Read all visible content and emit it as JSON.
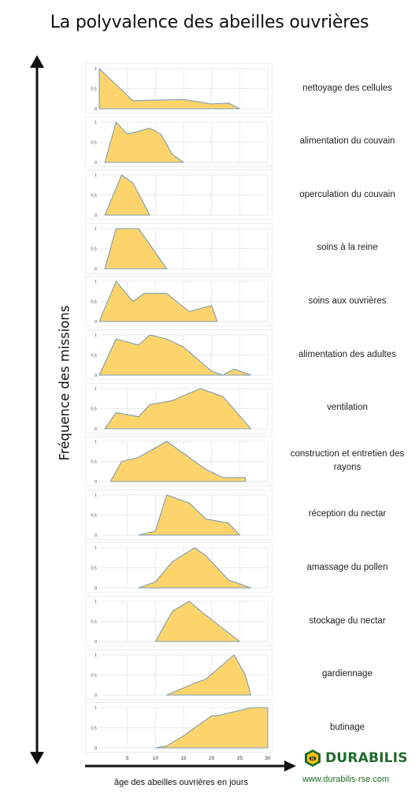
{
  "title": "La polyvalence des abeilles ouvrières",
  "y_axis_label": "Fréquence des missions",
  "x_axis_label": "âge des abeilles ouvrières en jours",
  "brand": {
    "name": "DURABILIS",
    "url": "www.durabilis-rse.com",
    "logo_icon": "bee-hexagon-icon"
  },
  "colors": {
    "fill": "#FDD46B",
    "stroke": "#7C9DB3",
    "grid": "#E3E3E3",
    "brand": "#1F6B2A"
  },
  "chart_data": {
    "type": "area",
    "x_ticks": [
      5,
      10,
      15,
      20,
      25,
      30
    ],
    "y_ticks": [
      0,
      0.5,
      1
    ],
    "xlim": [
      0,
      30
    ],
    "ylim": [
      0,
      1
    ],
    "grid": true,
    "panels": [
      {
        "label": "nettoyage des cellules",
        "points": [
          [
            0,
            1
          ],
          [
            6,
            0.2
          ],
          [
            15,
            0.23
          ],
          [
            20,
            0.12
          ],
          [
            23,
            0.14
          ],
          [
            25,
            0
          ]
        ]
      },
      {
        "label": "alimentation du couvain",
        "points": [
          [
            1,
            0
          ],
          [
            3,
            1
          ],
          [
            5,
            0.7
          ],
          [
            9,
            0.85
          ],
          [
            11,
            0.7
          ],
          [
            13,
            0.2
          ],
          [
            15,
            0
          ]
        ]
      },
      {
        "label": "operculation du couvain",
        "points": [
          [
            1,
            0
          ],
          [
            4,
            1
          ],
          [
            6,
            0.8
          ],
          [
            9,
            0
          ]
        ]
      },
      {
        "label": "soins à la reine",
        "points": [
          [
            1,
            0
          ],
          [
            3,
            1
          ],
          [
            7,
            1
          ],
          [
            12,
            0
          ]
        ]
      },
      {
        "label": "soins aux ouvrières",
        "points": [
          [
            0,
            0
          ],
          [
            3,
            1
          ],
          [
            6,
            0.5
          ],
          [
            8,
            0.7
          ],
          [
            12,
            0.7
          ],
          [
            16,
            0.25
          ],
          [
            20,
            0.4
          ],
          [
            21,
            0
          ]
        ]
      },
      {
        "label": "alimentation des adultes",
        "points": [
          [
            0,
            0
          ],
          [
            3,
            0.9
          ],
          [
            7,
            0.75
          ],
          [
            9,
            1
          ],
          [
            12,
            0.9
          ],
          [
            15,
            0.7
          ],
          [
            20,
            0.1
          ],
          [
            22,
            0
          ],
          [
            24,
            0.15
          ],
          [
            27,
            0
          ]
        ]
      },
      {
        "label": "ventilation",
        "points": [
          [
            1,
            0
          ],
          [
            3,
            0.4
          ],
          [
            7,
            0.3
          ],
          [
            9,
            0.6
          ],
          [
            13,
            0.7
          ],
          [
            18,
            1
          ],
          [
            22,
            0.8
          ],
          [
            27,
            0
          ]
        ]
      },
      {
        "label": "construction et entretien des rayons",
        "points": [
          [
            2,
            0
          ],
          [
            4,
            0.5
          ],
          [
            7,
            0.6
          ],
          [
            12,
            1
          ],
          [
            19,
            0.3
          ],
          [
            22,
            0.1
          ],
          [
            26,
            0.1
          ]
        ]
      },
      {
        "label": "réception du nectar",
        "points": [
          [
            7,
            0
          ],
          [
            10,
            0.1
          ],
          [
            12,
            1
          ],
          [
            16,
            0.8
          ],
          [
            19,
            0.4
          ],
          [
            23,
            0.3
          ],
          [
            25,
            0
          ]
        ]
      },
      {
        "label": "amassage du pollen",
        "points": [
          [
            7,
            0
          ],
          [
            10,
            0.15
          ],
          [
            13,
            0.65
          ],
          [
            17,
            1
          ],
          [
            19,
            0.8
          ],
          [
            23,
            0.2
          ],
          [
            27,
            0
          ]
        ]
      },
      {
        "label": "stockage du nectar",
        "points": [
          [
            10,
            0
          ],
          [
            13,
            0.75
          ],
          [
            16,
            1
          ],
          [
            19,
            0.65
          ],
          [
            25,
            0
          ]
        ]
      },
      {
        "label": "gardiennage",
        "points": [
          [
            12,
            0
          ],
          [
            17,
            0.3
          ],
          [
            19,
            0.4
          ],
          [
            24,
            1
          ],
          [
            26,
            0.5
          ],
          [
            27,
            0
          ]
        ]
      },
      {
        "label": "butinage",
        "points": [
          [
            10,
            0
          ],
          [
            12,
            0.05
          ],
          [
            15,
            0.3
          ],
          [
            20,
            0.8
          ],
          [
            21,
            0.8
          ],
          [
            27,
            1
          ],
          [
            30,
            1
          ],
          [
            30,
            0
          ]
        ]
      }
    ]
  }
}
